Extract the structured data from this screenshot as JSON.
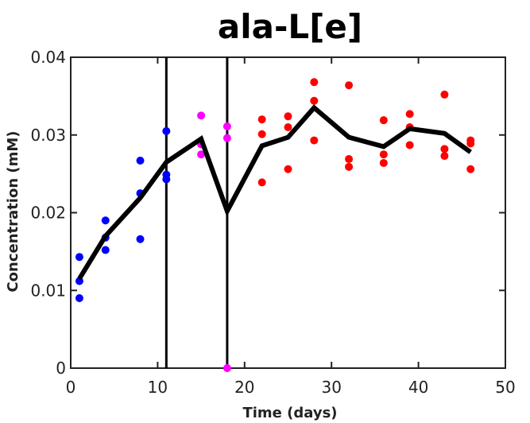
{
  "chart_data": {
    "type": "scatter",
    "title": "ala-L[e]",
    "xlabel": "Time (days)",
    "ylabel": "Concentration (mM)",
    "xlim": [
      0,
      50
    ],
    "ylim": [
      0,
      0.04
    ],
    "xticks": [
      0,
      10,
      20,
      30,
      40,
      50
    ],
    "yticks": [
      0,
      0.01,
      0.02,
      0.03,
      0.04
    ],
    "xtick_labels": [
      "0",
      "10",
      "20",
      "30",
      "40",
      "50"
    ],
    "ytick_labels": [
      "0",
      "0.01",
      "0.02",
      "0.03",
      "0.04"
    ],
    "grid": false,
    "vlines": [
      11,
      18
    ],
    "series": [
      {
        "color": "#0000ff",
        "points": [
          [
            1,
            0.0143
          ],
          [
            1,
            0.0112
          ],
          [
            1,
            0.009
          ],
          [
            4,
            0.019
          ],
          [
            4,
            0.0168
          ],
          [
            4,
            0.0152
          ],
          [
            8,
            0.0267
          ],
          [
            8,
            0.0225
          ],
          [
            8,
            0.0166
          ],
          [
            11,
            0.0305
          ],
          [
            11,
            0.0249
          ],
          [
            11,
            0.0243
          ]
        ]
      },
      {
        "color": "#ff00ff",
        "points": [
          [
            15,
            0.0325
          ],
          [
            15,
            0.0288
          ],
          [
            15,
            0.0275
          ],
          [
            18,
            0.0311
          ],
          [
            18,
            0.0296
          ],
          [
            18,
            0.0
          ]
        ]
      },
      {
        "color": "#ff0000",
        "points": [
          [
            22,
            0.032
          ],
          [
            22,
            0.0301
          ],
          [
            22,
            0.0239
          ],
          [
            25,
            0.0324
          ],
          [
            25,
            0.031
          ],
          [
            25,
            0.0256
          ],
          [
            28,
            0.0368
          ],
          [
            28,
            0.0344
          ],
          [
            28,
            0.0293
          ],
          [
            32,
            0.0364
          ],
          [
            32,
            0.0269
          ],
          [
            32,
            0.0259
          ],
          [
            36,
            0.0319
          ],
          [
            36,
            0.0275
          ],
          [
            36,
            0.0264
          ],
          [
            39,
            0.0327
          ],
          [
            39,
            0.031
          ],
          [
            39,
            0.0287
          ],
          [
            43,
            0.0352
          ],
          [
            43,
            0.0282
          ],
          [
            43,
            0.0273
          ],
          [
            46,
            0.0293
          ],
          [
            46,
            0.0289
          ],
          [
            46,
            0.0256
          ]
        ]
      },
      {
        "type": "line",
        "color": "#000000",
        "points": [
          [
            1,
            0.0115
          ],
          [
            4,
            0.017
          ],
          [
            8,
            0.0219
          ],
          [
            11,
            0.0265
          ],
          [
            15,
            0.0295
          ],
          [
            18,
            0.0202
          ],
          [
            22,
            0.0286
          ],
          [
            25,
            0.0297
          ],
          [
            28,
            0.0335
          ],
          [
            32,
            0.0297
          ],
          [
            36,
            0.0285
          ],
          [
            39,
            0.0308
          ],
          [
            43,
            0.0302
          ],
          [
            46,
            0.0278
          ]
        ]
      }
    ]
  }
}
